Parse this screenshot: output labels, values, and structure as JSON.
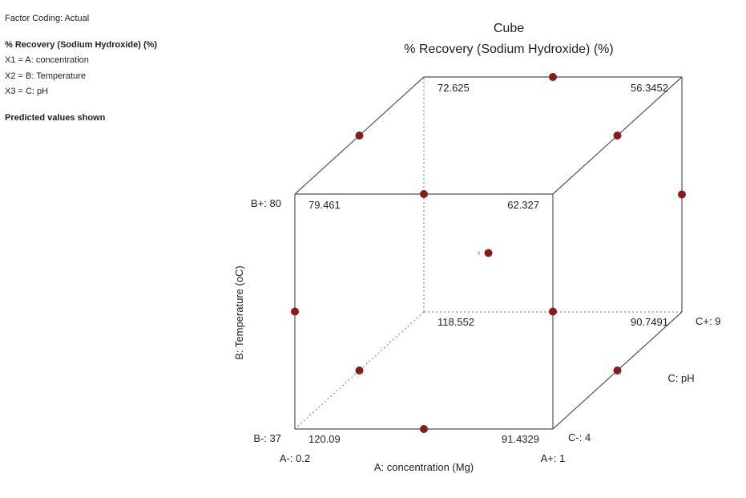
{
  "sidebar": {
    "factor_coding": "Factor Coding: Actual",
    "response": "% Recovery (Sodium Hydroxide) (%)",
    "x1": "X1 = A: concentration",
    "x2": "X2 = B: Temperature",
    "x3": "X3 = C: pH",
    "note": "Predicted values shown"
  },
  "chart_data": {
    "type": "cube",
    "title": "Cube",
    "subtitle": "% Recovery (Sodium Hydroxide) (%)",
    "axes": {
      "A": {
        "label": "A: concentration (Mg)",
        "low": "A-: 0.2",
        "high": "A+: 1"
      },
      "B": {
        "label": "B: Temperature (oC)",
        "low": "B-: 37",
        "high": "B+: 80"
      },
      "C": {
        "label": "C: pH",
        "low": "C-: 4",
        "high": "C+: 9"
      }
    },
    "corners": [
      {
        "A": "-",
        "B": "-",
        "C": "-",
        "value": "120.09"
      },
      {
        "A": "+",
        "B": "-",
        "C": "-",
        "value": "91.4329"
      },
      {
        "A": "-",
        "B": "+",
        "C": "-",
        "value": "79.461"
      },
      {
        "A": "+",
        "B": "+",
        "C": "-",
        "value": "62.327"
      },
      {
        "A": "-",
        "B": "-",
        "C": "+",
        "value": "118.552"
      },
      {
        "A": "+",
        "B": "-",
        "C": "+",
        "value": "90.7491"
      },
      {
        "A": "-",
        "B": "+",
        "C": "+",
        "value": "72.625"
      },
      {
        "A": "+",
        "B": "+",
        "C": "+",
        "value": "56.3452"
      }
    ],
    "design_points": [
      {
        "A": 0,
        "B": -1,
        "C": -1
      },
      {
        "A": -1,
        "B": 0,
        "C": -1
      },
      {
        "A": 0,
        "B": 1,
        "C": -1
      },
      {
        "A": 1,
        "B": 0,
        "C": -1
      },
      {
        "A": -1,
        "B": -1,
        "C": 0
      },
      {
        "A": -1,
        "B": 1,
        "C": 0
      },
      {
        "A": 1,
        "B": 1,
        "C": 0
      },
      {
        "A": 1,
        "B": -1,
        "C": 0
      },
      {
        "A": 0,
        "B": 1,
        "C": 1
      },
      {
        "A": 1,
        "B": 0,
        "C": 1
      },
      {
        "A": 0,
        "B": 0,
        "C": 0,
        "label": "5"
      }
    ],
    "marker_color": "#8b1a1a"
  }
}
